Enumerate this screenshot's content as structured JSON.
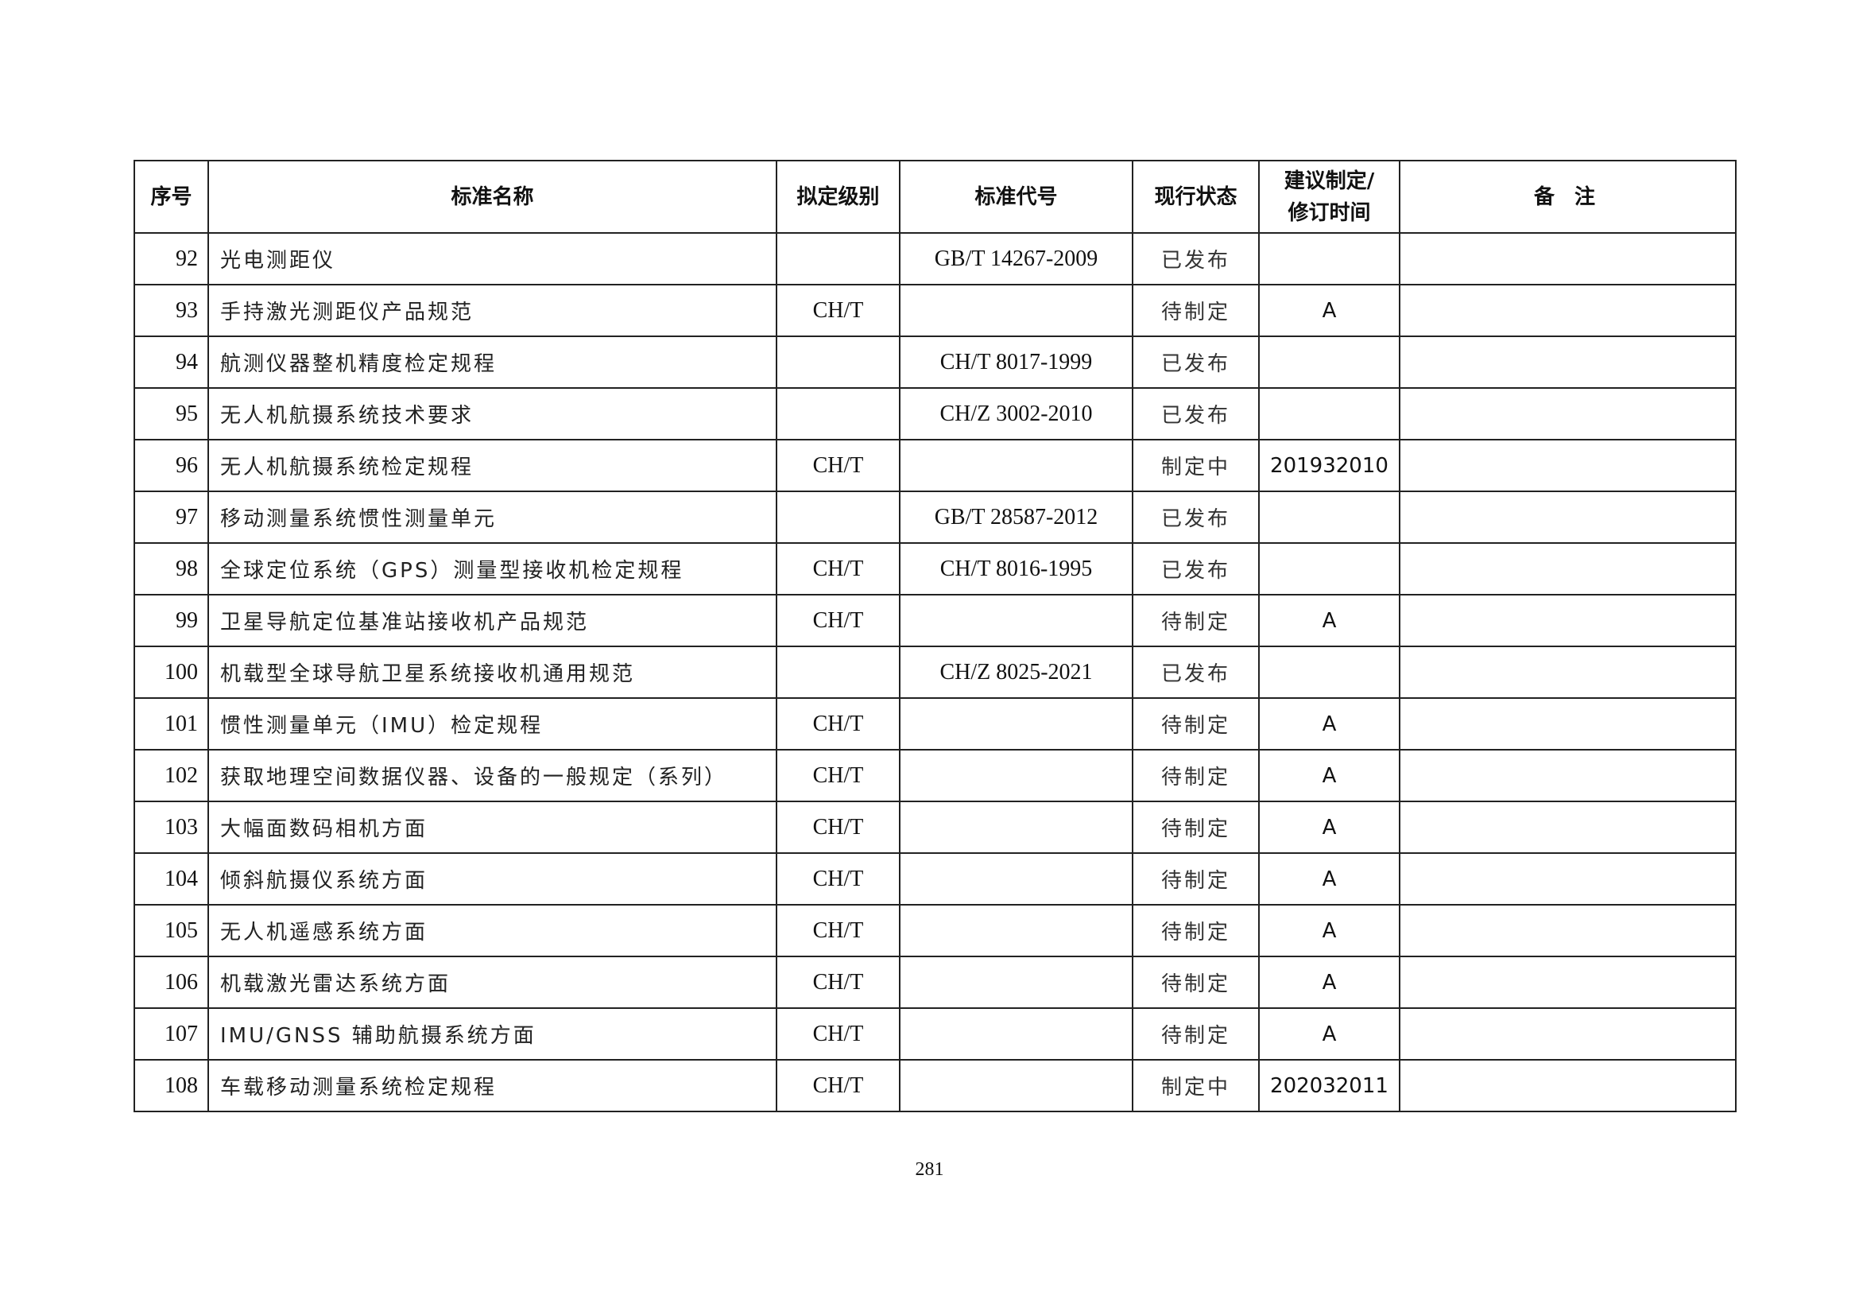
{
  "table": {
    "headers": [
      "序号",
      "标准名称",
      "拟定级别",
      "标准代号",
      "现行状态",
      "建议制定/修订时间",
      "备 注"
    ],
    "header_time_line1": "建议制定/",
    "header_time_line2": "修订时间",
    "rows": [
      {
        "no": "92",
        "name": "光电测距仪",
        "level": "",
        "code": "GB/T 14267-2009",
        "status": "已发布",
        "time": "",
        "remark": ""
      },
      {
        "no": "93",
        "name": "手持激光测距仪产品规范",
        "level": "CH/T",
        "code": "",
        "status": "待制定",
        "time": "A",
        "remark": ""
      },
      {
        "no": "94",
        "name": "航测仪器整机精度检定规程",
        "level": "",
        "code": "CH/T 8017-1999",
        "status": "已发布",
        "time": "",
        "remark": ""
      },
      {
        "no": "95",
        "name": "无人机航摄系统技术要求",
        "level": "",
        "code": "CH/Z 3002-2010",
        "status": "已发布",
        "time": "",
        "remark": ""
      },
      {
        "no": "96",
        "name": "无人机航摄系统检定规程",
        "level": "CH/T",
        "code": "",
        "status": "制定中",
        "time": "201932010",
        "remark": ""
      },
      {
        "no": "97",
        "name": "移动测量系统惯性测量单元",
        "level": "",
        "code": "GB/T 28587-2012",
        "status": "已发布",
        "time": "",
        "remark": ""
      },
      {
        "no": "98",
        "name": "全球定位系统（GPS）测量型接收机检定规程",
        "level": "CH/T",
        "code": "CH/T 8016-1995",
        "status": "已发布",
        "time": "",
        "remark": ""
      },
      {
        "no": "99",
        "name": "卫星导航定位基准站接收机产品规范",
        "level": "CH/T",
        "code": "",
        "status": "待制定",
        "time": "A",
        "remark": ""
      },
      {
        "no": "100",
        "name": "机载型全球导航卫星系统接收机通用规范",
        "level": "",
        "code": "CH/Z 8025-2021",
        "status": "已发布",
        "time": "",
        "remark": ""
      },
      {
        "no": "101",
        "name": "惯性测量单元（IMU）检定规程",
        "level": "CH/T",
        "code": "",
        "status": "待制定",
        "time": "A",
        "remark": ""
      },
      {
        "no": "102",
        "name": "获取地理空间数据仪器、设备的一般规定（系列）",
        "level": "CH/T",
        "code": "",
        "status": "待制定",
        "time": "A",
        "remark": ""
      },
      {
        "no": "103",
        "name": "大幅面数码相机方面",
        "level": "CH/T",
        "code": "",
        "status": "待制定",
        "time": "A",
        "remark": ""
      },
      {
        "no": "104",
        "name": "倾斜航摄仪系统方面",
        "level": "CH/T",
        "code": "",
        "status": "待制定",
        "time": "A",
        "remark": ""
      },
      {
        "no": "105",
        "name": "无人机遥感系统方面",
        "level": "CH/T",
        "code": "",
        "status": "待制定",
        "time": "A",
        "remark": ""
      },
      {
        "no": "106",
        "name": "机载激光雷达系统方面",
        "level": "CH/T",
        "code": "",
        "status": "待制定",
        "time": "A",
        "remark": ""
      },
      {
        "no": "107",
        "name": "IMU/GNSS 辅助航摄系统方面",
        "level": "CH/T",
        "code": "",
        "status": "待制定",
        "time": "A",
        "remark": ""
      },
      {
        "no": "108",
        "name": "车载移动测量系统检定规程",
        "level": "CH/T",
        "code": "",
        "status": "制定中",
        "time": "202032011",
        "remark": ""
      }
    ]
  },
  "page_number": "281"
}
